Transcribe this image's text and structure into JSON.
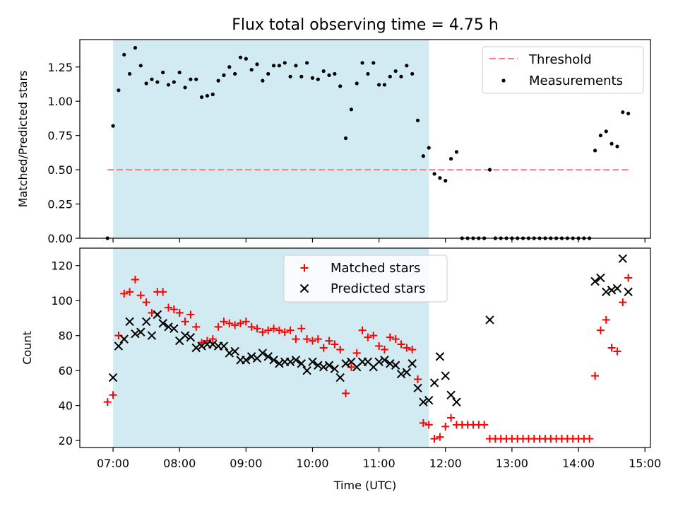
{
  "chart_data": [
    {
      "type": "scatter",
      "title": "Flux total observing time = 4.75 h",
      "ylabel": "Matched/Predicted stars",
      "xlabel": "",
      "xlim": [
        "06:30",
        "15:05"
      ],
      "ylim": [
        0,
        1.45
      ],
      "yticks": [
        "0.00",
        "0.25",
        "0.50",
        "0.75",
        "1.00",
        "1.25"
      ],
      "grid": false,
      "legend_position": "top-right",
      "shaded_interval": [
        "07:00",
        "11:45"
      ],
      "shade_color": "#add8e6",
      "threshold": {
        "name": "Threshold",
        "value": 0.5,
        "x_start": "06:55",
        "x_end": "14:47",
        "color": "#ff7f7f"
      },
      "series": [
        {
          "name": "Measurements",
          "color": "#000000",
          "x": [
            "06:55",
            "07:00",
            "07:05",
            "07:10",
            "07:15",
            "07:20",
            "07:25",
            "07:30",
            "07:35",
            "07:40",
            "07:45",
            "07:50",
            "07:55",
            "08:00",
            "08:05",
            "08:10",
            "08:15",
            "08:20",
            "08:25",
            "08:30",
            "08:35",
            "08:40",
            "08:45",
            "08:50",
            "08:55",
            "09:00",
            "09:05",
            "09:10",
            "09:15",
            "09:20",
            "09:25",
            "09:30",
            "09:35",
            "09:40",
            "09:45",
            "09:50",
            "09:55",
            "10:00",
            "10:05",
            "10:10",
            "10:15",
            "10:20",
            "10:25",
            "10:30",
            "10:35",
            "10:40",
            "10:45",
            "10:50",
            "10:55",
            "11:00",
            "11:05",
            "11:10",
            "11:15",
            "11:20",
            "11:25",
            "11:30",
            "11:35",
            "11:40",
            "11:45",
            "11:50",
            "11:55",
            "12:00",
            "12:05",
            "12:10",
            "12:15",
            "12:20",
            "12:25",
            "12:30",
            "12:35",
            "12:40",
            "12:45",
            "12:50",
            "12:55",
            "13:00",
            "13:05",
            "13:10",
            "13:15",
            "13:20",
            "13:25",
            "13:30",
            "13:35",
            "13:40",
            "13:45",
            "13:50",
            "13:55",
            "14:00",
            "14:05",
            "14:10",
            "14:15",
            "14:20",
            "14:25",
            "14:30",
            "14:35",
            "14:40",
            "14:45"
          ],
          "y": [
            0.0,
            0.82,
            1.08,
            1.34,
            1.2,
            1.39,
            1.26,
            1.13,
            1.16,
            1.14,
            1.21,
            1.12,
            1.14,
            1.21,
            1.1,
            1.16,
            1.16,
            1.03,
            1.04,
            1.05,
            1.15,
            1.19,
            1.25,
            1.2,
            1.32,
            1.31,
            1.23,
            1.27,
            1.15,
            1.2,
            1.26,
            1.26,
            1.28,
            1.18,
            1.26,
            1.18,
            1.28,
            1.17,
            1.16,
            1.22,
            1.19,
            1.2,
            1.11,
            0.73,
            0.94,
            1.13,
            1.28,
            1.2,
            1.28,
            1.12,
            1.12,
            1.18,
            1.22,
            1.18,
            1.26,
            1.2,
            0.86,
            0.6,
            0.66,
            0.47,
            0.44,
            0.42,
            0.58,
            0.63,
            0.0,
            0.0,
            0.0,
            0.0,
            0.0,
            0.5,
            0.0,
            0.0,
            0.0,
            0.0,
            0.0,
            0.0,
            0.0,
            0.0,
            0.0,
            0.0,
            0.0,
            0.0,
            0.0,
            0.0,
            0.0,
            0.0,
            0.0,
            0.0,
            0.64,
            0.75,
            0.78,
            0.69,
            0.67,
            0.92,
            0.91
          ]
        }
      ]
    },
    {
      "type": "scatter",
      "title": "",
      "ylabel": "Count",
      "xlabel": "Time (UTC)",
      "xlim": [
        "06:30",
        "15:05"
      ],
      "ylim": [
        16,
        130
      ],
      "yticks": [
        "20",
        "40",
        "60",
        "80",
        "100",
        "120"
      ],
      "xticks": [
        "07:00",
        "08:00",
        "09:00",
        "10:00",
        "11:00",
        "12:00",
        "13:00",
        "14:00",
        "15:00"
      ],
      "grid": false,
      "legend_position": "top-center",
      "shaded_interval": [
        "07:00",
        "11:45"
      ],
      "shade_color": "#add8e6",
      "series": [
        {
          "name": "Matched stars",
          "marker": "+",
          "color": "#ff0000",
          "x": [
            "06:55",
            "07:00",
            "07:05",
            "07:10",
            "07:15",
            "07:20",
            "07:25",
            "07:30",
            "07:35",
            "07:40",
            "07:45",
            "07:50",
            "07:55",
            "08:00",
            "08:05",
            "08:10",
            "08:15",
            "08:20",
            "08:25",
            "08:30",
            "08:35",
            "08:40",
            "08:45",
            "08:50",
            "08:55",
            "09:00",
            "09:05",
            "09:10",
            "09:15",
            "09:20",
            "09:25",
            "09:30",
            "09:35",
            "09:40",
            "09:45",
            "09:50",
            "09:55",
            "10:00",
            "10:05",
            "10:10",
            "10:15",
            "10:20",
            "10:25",
            "10:30",
            "10:35",
            "10:40",
            "10:45",
            "10:50",
            "10:55",
            "11:00",
            "11:05",
            "11:10",
            "11:15",
            "11:20",
            "11:25",
            "11:30",
            "11:35",
            "11:40",
            "11:45",
            "11:50",
            "11:55",
            "12:00",
            "12:05",
            "12:10",
            "12:15",
            "12:20",
            "12:25",
            "12:30",
            "12:35",
            "12:40",
            "12:45",
            "12:50",
            "12:55",
            "13:00",
            "13:05",
            "13:10",
            "13:15",
            "13:20",
            "13:25",
            "13:30",
            "13:35",
            "13:40",
            "13:45",
            "13:50",
            "13:55",
            "14:00",
            "14:05",
            "14:10",
            "14:15",
            "14:20",
            "14:25",
            "14:30",
            "14:35",
            "14:40",
            "14:45"
          ],
          "y": [
            42,
            46,
            80,
            104,
            105,
            112,
            103,
            99,
            93,
            105,
            105,
            96,
            95,
            93,
            88,
            92,
            85,
            76,
            77,
            78,
            85,
            88,
            87,
            86,
            87,
            88,
            85,
            84,
            82,
            83,
            84,
            83,
            82,
            83,
            78,
            84,
            78,
            77,
            78,
            73,
            77,
            75,
            72,
            47,
            62,
            70,
            83,
            79,
            80,
            74,
            72,
            79,
            78,
            75,
            73,
            72,
            55,
            30,
            29,
            21,
            22,
            28,
            33,
            29,
            29,
            29,
            29,
            29,
            29,
            21,
            21,
            21,
            21,
            21,
            21,
            21,
            21,
            21,
            21,
            21,
            21,
            21,
            21,
            21,
            21,
            21,
            21,
            21,
            57,
            83,
            89,
            73,
            71,
            99,
            113
          ]
        },
        {
          "name": "Predicted stars",
          "marker": "x",
          "color": "#000000",
          "x": [
            "07:00",
            "07:05",
            "07:10",
            "07:15",
            "07:20",
            "07:25",
            "07:30",
            "07:35",
            "07:40",
            "07:45",
            "07:50",
            "07:55",
            "08:00",
            "08:05",
            "08:10",
            "08:15",
            "08:20",
            "08:25",
            "08:30",
            "08:35",
            "08:40",
            "08:45",
            "08:50",
            "08:55",
            "09:00",
            "09:05",
            "09:10",
            "09:15",
            "09:20",
            "09:25",
            "09:30",
            "09:35",
            "09:40",
            "09:45",
            "09:50",
            "09:55",
            "10:00",
            "10:05",
            "10:10",
            "10:15",
            "10:20",
            "10:25",
            "10:30",
            "10:35",
            "10:40",
            "10:45",
            "10:50",
            "10:55",
            "11:00",
            "11:05",
            "11:10",
            "11:15",
            "11:20",
            "11:25",
            "11:30",
            "11:35",
            "11:40",
            "11:45",
            "11:50",
            "11:55",
            "12:00",
            "12:05",
            "12:10",
            "12:40",
            "14:15",
            "14:20",
            "14:25",
            "14:30",
            "14:35",
            "14:40",
            "14:45"
          ],
          "y": [
            56,
            74,
            78,
            88,
            81,
            82,
            88,
            80,
            92,
            87,
            85,
            84,
            77,
            80,
            79,
            73,
            74,
            75,
            75,
            74,
            74,
            70,
            71,
            66,
            66,
            68,
            67,
            70,
            68,
            66,
            64,
            65,
            65,
            66,
            64,
            60,
            65,
            63,
            62,
            63,
            61,
            56,
            64,
            65,
            62,
            65,
            65,
            62,
            65,
            66,
            64,
            63,
            58,
            59,
            64,
            50,
            42,
            43,
            53,
            68,
            57,
            46,
            42,
            89,
            111,
            113,
            105,
            106,
            107,
            124,
            105
          ]
        }
      ]
    }
  ]
}
